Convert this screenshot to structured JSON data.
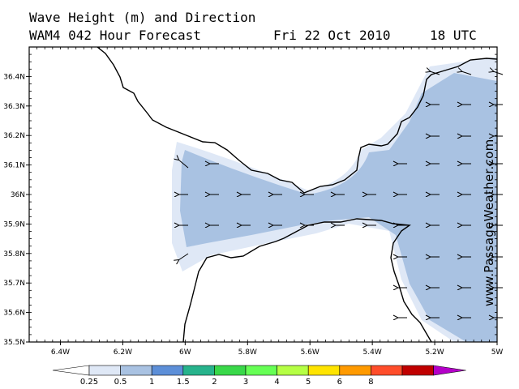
{
  "title": {
    "line1": "Wave Height (m) and Direction",
    "model_forecast": "WAM4 042 Hour Forecast",
    "date": "Fri 22 Oct 2010",
    "time": "18 UTC"
  },
  "watermark": "www.PassageWeather.com",
  "map": {
    "lat_labels": [
      "36.4N",
      "36.3N",
      "36.2N",
      "36.1N",
      "36N",
      "35.9N",
      "35.8N",
      "35.7N",
      "35.6N",
      "35.5N"
    ],
    "lon_labels": [
      "6.4W",
      "6.2W",
      "6W",
      "5.8W",
      "5.6W",
      "5.4W",
      "5.2W",
      "5W"
    ],
    "lat_range": [
      35.5,
      36.5
    ],
    "lon_range": [
      -6.5,
      -5.0
    ]
  },
  "legend": {
    "labels": [
      "0.25",
      "0.5",
      "1",
      "1.5",
      "2",
      "3",
      "4",
      "5",
      "6",
      "8"
    ],
    "colors": [
      "#ffffff",
      "#dfe8f6",
      "#a9c2e2",
      "#5d8fd8",
      "#27b38c",
      "#39d849",
      "#66ff55",
      "#b5ff44",
      "#ffe400",
      "#ff9a00",
      "#ff4d2a",
      "#c00000",
      "#b400c8"
    ]
  },
  "wave_direction": "westward",
  "chart_data": {
    "type": "heatmap",
    "title": "Wave Height (m) and Direction",
    "legend_bins_m": [
      0.25,
      0.5,
      1,
      1.5,
      2,
      3,
      4,
      5,
      6,
      8
    ],
    "x_ticks": [
      "6.4W",
      "6.2W",
      "6W",
      "5.8W",
      "5.6W",
      "5.4W",
      "5.2W",
      "5W"
    ],
    "y_ticks": [
      "36.4N",
      "36.3N",
      "36.2N",
      "36.1N",
      "36N",
      "35.9N",
      "35.8N",
      "35.7N",
      "35.6N",
      "35.5N"
    ]
  }
}
